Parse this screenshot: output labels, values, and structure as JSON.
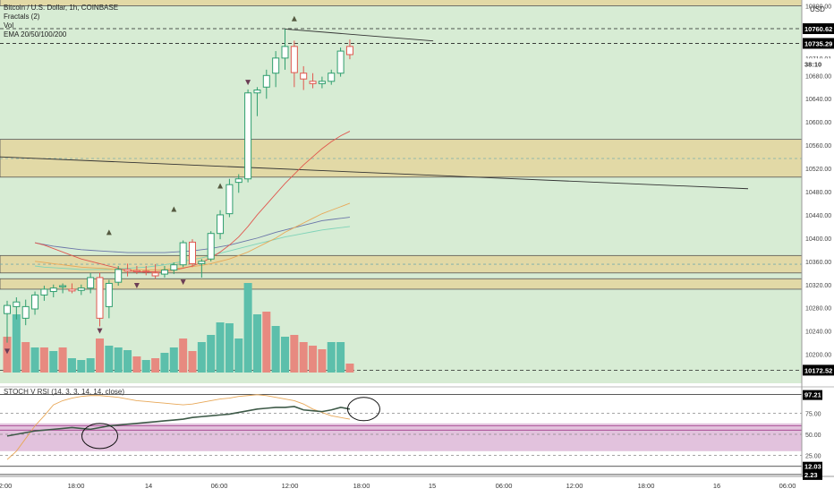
{
  "legend": {
    "title": "Bitcoin / U.S. Dollar, 1h, COINBASE",
    "fractals": "Fractals (2)",
    "vol": "Vol",
    "ema": "EMA 20/50/100/200"
  },
  "currency_label": "USD",
  "stoch_legend": "STOCH V RSI (14, 3, 3, 14, 14, close)",
  "price_axis": {
    "ticks": [
      "10800.00",
      "10710.01",
      "10680.00",
      "10640.00",
      "10600.00",
      "10560.00",
      "10520.00",
      "10480.00",
      "10440.00",
      "10400.00",
      "10360.00",
      "10320.00",
      "10280.00",
      "10240.00",
      "10200.00"
    ],
    "badges": [
      {
        "label": "10760.62",
        "bg": "#000000",
        "fg": "#ffffff",
        "value": 10760.62
      },
      {
        "label": "10735.29",
        "bg": "#000000",
        "fg": "#ffffff",
        "value": 10735.29
      },
      {
        "label": "38:10",
        "bg": "#ffffff",
        "fg": "#333333",
        "value": 10700
      },
      {
        "label": "10172.52",
        "bg": "#000000",
        "fg": "#ffffff",
        "value": 10172.52
      }
    ]
  },
  "stoch_axis": {
    "ticks": [
      "75.00",
      "50.00",
      "25.00"
    ],
    "badges": [
      {
        "label": "97.21",
        "value": 97.21
      },
      {
        "label": "12.03",
        "value": 12.03
      },
      {
        "label": "2.23",
        "value": 2.23
      }
    ]
  },
  "time_axis": [
    "2:00",
    "18:00",
    "14",
    "06:00",
    "12:00",
    "18:00",
    "15",
    "06:00",
    "12:00",
    "18:00",
    "16",
    "06:00"
  ],
  "colors": {
    "background": "#d7ecd4",
    "zone_fill": "#e2d9a6",
    "up_candle": "#ffffff",
    "up_border": "#2f9e6e",
    "down_candle": "#ffffff",
    "down_border": "#e0584f",
    "vol_up": "#5cbfab",
    "vol_down": "#e78a80",
    "fractal_up": "#555a40",
    "fractal_down": "#6b3d55",
    "ema20": "#e0584f",
    "ema50": "#e8a858",
    "ema100": "#6a75a8",
    "ema200": "#7fd3b8",
    "stoch_band": "#e2c2dd"
  },
  "chart_data": {
    "type": "candlestick",
    "symbol": "Bitcoin / U.S. Dollar",
    "interval": "1h",
    "exchange": "COINBASE",
    "price_range": [
      10150,
      10810
    ],
    "zones": [
      [
        10800,
        10812
      ],
      [
        10505,
        10570
      ],
      [
        10312,
        10330
      ],
      [
        10340,
        10370
      ]
    ],
    "candles": [
      {
        "o": 10270,
        "h": 10292,
        "l": 10220,
        "c": 10284
      },
      {
        "o": 10282,
        "h": 10298,
        "l": 10260,
        "c": 10290
      },
      {
        "o": 10262,
        "h": 10294,
        "l": 10250,
        "c": 10282
      },
      {
        "o": 10278,
        "h": 10308,
        "l": 10268,
        "c": 10302
      },
      {
        "o": 10302,
        "h": 10318,
        "l": 10292,
        "c": 10312
      },
      {
        "o": 10308,
        "h": 10320,
        "l": 10298,
        "c": 10314
      },
      {
        "o": 10316,
        "h": 10322,
        "l": 10305,
        "c": 10318
      },
      {
        "o": 10312,
        "h": 10322,
        "l": 10305,
        "c": 10309
      },
      {
        "o": 10310,
        "h": 10320,
        "l": 10302,
        "c": 10314
      },
      {
        "o": 10314,
        "h": 10340,
        "l": 10305,
        "c": 10332
      },
      {
        "o": 10332,
        "h": 10340,
        "l": 10248,
        "c": 10262
      },
      {
        "o": 10282,
        "h": 10328,
        "l": 10262,
        "c": 10322
      },
      {
        "o": 10324,
        "h": 10352,
        "l": 10318,
        "c": 10346
      },
      {
        "o": 10346,
        "h": 10356,
        "l": 10334,
        "c": 10343
      },
      {
        "o": 10344,
        "h": 10352,
        "l": 10338,
        "c": 10342
      },
      {
        "o": 10343,
        "h": 10352,
        "l": 10336,
        "c": 10342
      },
      {
        "o": 10340,
        "h": 10355,
        "l": 10330,
        "c": 10335
      },
      {
        "o": 10338,
        "h": 10352,
        "l": 10332,
        "c": 10345
      },
      {
        "o": 10345,
        "h": 10358,
        "l": 10338,
        "c": 10354
      },
      {
        "o": 10354,
        "h": 10396,
        "l": 10350,
        "c": 10392
      },
      {
        "o": 10393,
        "h": 10398,
        "l": 10350,
        "c": 10356
      },
      {
        "o": 10356,
        "h": 10364,
        "l": 10332,
        "c": 10360
      },
      {
        "o": 10364,
        "h": 10412,
        "l": 10360,
        "c": 10408
      },
      {
        "o": 10408,
        "h": 10448,
        "l": 10398,
        "c": 10440
      },
      {
        "o": 10442,
        "h": 10502,
        "l": 10436,
        "c": 10492
      },
      {
        "o": 10496,
        "h": 10510,
        "l": 10478,
        "c": 10502
      },
      {
        "o": 10502,
        "h": 10656,
        "l": 10496,
        "c": 10650
      },
      {
        "o": 10650,
        "h": 10660,
        "l": 10610,
        "c": 10655
      },
      {
        "o": 10660,
        "h": 10690,
        "l": 10640,
        "c": 10680
      },
      {
        "o": 10684,
        "h": 10722,
        "l": 10660,
        "c": 10710
      },
      {
        "o": 10710,
        "h": 10760,
        "l": 10690,
        "c": 10730
      },
      {
        "o": 10730,
        "h": 10740,
        "l": 10660,
        "c": 10685
      },
      {
        "o": 10684,
        "h": 10696,
        "l": 10655,
        "c": 10674
      },
      {
        "o": 10670,
        "h": 10684,
        "l": 10658,
        "c": 10666
      },
      {
        "o": 10666,
        "h": 10678,
        "l": 10658,
        "c": 10670
      },
      {
        "o": 10670,
        "h": 10690,
        "l": 10664,
        "c": 10684
      },
      {
        "o": 10684,
        "h": 10728,
        "l": 10678,
        "c": 10722
      },
      {
        "o": 10730,
        "h": 10742,
        "l": 10708,
        "c": 10716
      }
    ],
    "volume": [
      {
        "v": 0.4,
        "up": false
      },
      {
        "v": 0.65,
        "up": true
      },
      {
        "v": 0.34,
        "up": false
      },
      {
        "v": 0.28,
        "up": true
      },
      {
        "v": 0.28,
        "up": false
      },
      {
        "v": 0.24,
        "up": true
      },
      {
        "v": 0.28,
        "up": false
      },
      {
        "v": 0.16,
        "up": true
      },
      {
        "v": 0.14,
        "up": true
      },
      {
        "v": 0.16,
        "up": true
      },
      {
        "v": 0.38,
        "up": false
      },
      {
        "v": 0.3,
        "up": true
      },
      {
        "v": 0.28,
        "up": true
      },
      {
        "v": 0.25,
        "up": true
      },
      {
        "v": 0.18,
        "up": false
      },
      {
        "v": 0.14,
        "up": true
      },
      {
        "v": 0.16,
        "up": false
      },
      {
        "v": 0.22,
        "up": true
      },
      {
        "v": 0.28,
        "up": true
      },
      {
        "v": 0.38,
        "up": false
      },
      {
        "v": 0.24,
        "up": false
      },
      {
        "v": 0.34,
        "up": true
      },
      {
        "v": 0.42,
        "up": true
      },
      {
        "v": 0.56,
        "up": true
      },
      {
        "v": 0.55,
        "up": true
      },
      {
        "v": 0.38,
        "up": true
      },
      {
        "v": 1.0,
        "up": true
      },
      {
        "v": 0.65,
        "up": true
      },
      {
        "v": 0.68,
        "up": false
      },
      {
        "v": 0.52,
        "up": true
      },
      {
        "v": 0.4,
        "up": true
      },
      {
        "v": 0.42,
        "up": false
      },
      {
        "v": 0.34,
        "up": false
      },
      {
        "v": 0.3,
        "up": false
      },
      {
        "v": 0.26,
        "up": false
      },
      {
        "v": 0.34,
        "up": true
      },
      {
        "v": 0.34,
        "up": true
      },
      {
        "v": 0.1,
        "up": false
      }
    ],
    "fractals_up": [
      {
        "i": 11,
        "p": 10410
      },
      {
        "i": 18,
        "p": 10450
      },
      {
        "i": 23,
        "p": 10490
      },
      {
        "i": 31,
        "p": 10778
      }
    ],
    "fractals_down": [
      {
        "i": 0,
        "p": 10205
      },
      {
        "i": 10,
        "p": 10240
      },
      {
        "i": 14,
        "p": 10318
      },
      {
        "i": 19,
        "p": 10324
      },
      {
        "i": 26,
        "p": 10668
      }
    ],
    "ema20": [
      10392,
      10388,
      10382,
      10376,
      10370,
      10364,
      10360,
      10356,
      10352,
      10348,
      10344,
      10342,
      10342,
      10342,
      10343,
      10345,
      10348,
      10352,
      10358,
      10366,
      10376,
      10388,
      10402,
      10420,
      10440,
      10458,
      10476,
      10494,
      10510,
      10526,
      10540,
      10554,
      10566,
      10576,
      10584
    ],
    "ema50": [
      10360,
      10358,
      10356,
      10354,
      10352,
      10350,
      10349,
      10348,
      10347,
      10346,
      10345,
      10345,
      10345,
      10345,
      10346,
      10347,
      10349,
      10351,
      10353,
      10356,
      10360,
      10364,
      10370,
      10376,
      10384,
      10392,
      10400,
      10410,
      10418,
      10426,
      10434,
      10442,
      10448,
      10454,
      10460
    ],
    "ema100": [
      10392,
      10389,
      10386,
      10384,
      10382,
      10380,
      10379,
      10378,
      10377,
      10376,
      10375,
      10375,
      10375,
      10375,
      10375,
      10376,
      10377,
      10378,
      10380,
      10382,
      10385,
      10388,
      10392,
      10396,
      10400,
      10405,
      10410,
      10414,
      10418,
      10422,
      10426,
      10430,
      10432,
      10434,
      10436
    ],
    "ema200": [
      10352,
      10350,
      10349,
      10348,
      10347,
      10346,
      10346,
      10346,
      10346,
      10347,
      10348,
      10349,
      10350,
      10352,
      10354,
      10357,
      10360,
      10363,
      10366,
      10370,
      10374,
      10378,
      10382,
      10386,
      10390,
      10394,
      10398,
      10402,
      10405,
      10408,
      10411,
      10414,
      10416,
      10418,
      10420
    ],
    "trendline_top": [
      {
        "i": 30,
        "p": 10760
      },
      {
        "i": 38,
        "p": 10735
      },
      {
        "i": 46,
        "p": 10735
      }
    ],
    "trendline_long": [
      {
        "i": -1,
        "p": 10540
      },
      {
        "i": 80,
        "p": 10485
      }
    ],
    "hlines_dashed": [
      10760.62,
      10735.29,
      10172.52
    ],
    "stoch_k": [
      48,
      50,
      52,
      54,
      55,
      56,
      57,
      58,
      57,
      56,
      58,
      60,
      61,
      62,
      63,
      64,
      65,
      66,
      67,
      68,
      70,
      71,
      72,
      73,
      74,
      76,
      78,
      80,
      81,
      82,
      82,
      83,
      79,
      78,
      77,
      79,
      82,
      80
    ],
    "stoch_d": [
      20,
      30,
      45,
      60,
      72,
      85,
      90,
      93,
      95,
      96,
      96,
      95,
      94,
      92,
      90,
      89,
      88,
      87,
      86,
      85,
      86,
      88,
      90,
      92,
      93,
      95,
      96,
      97,
      96,
      94,
      92,
      90,
      86,
      80,
      76,
      72,
      70,
      68
    ]
  }
}
